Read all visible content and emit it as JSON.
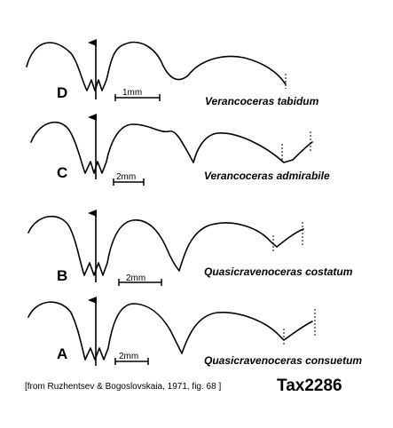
{
  "figure": {
    "panels": [
      {
        "label": "D",
        "species": "Verancoceras tabidum",
        "scale": "1mm"
      },
      {
        "label": "C",
        "species": "Verancoceras admirabile",
        "scale": "2mm"
      },
      {
        "label": "B",
        "species": "Quasicravenoceras costatum",
        "scale": "2mm"
      },
      {
        "label": "A",
        "species": "Quasicravenoceras consuetum",
        "scale": "2mm"
      }
    ],
    "source": "[from Ruzhentsev & Bogoslovskaia, 1971, fig. 68 ]",
    "tax_id": "Tax2286"
  }
}
